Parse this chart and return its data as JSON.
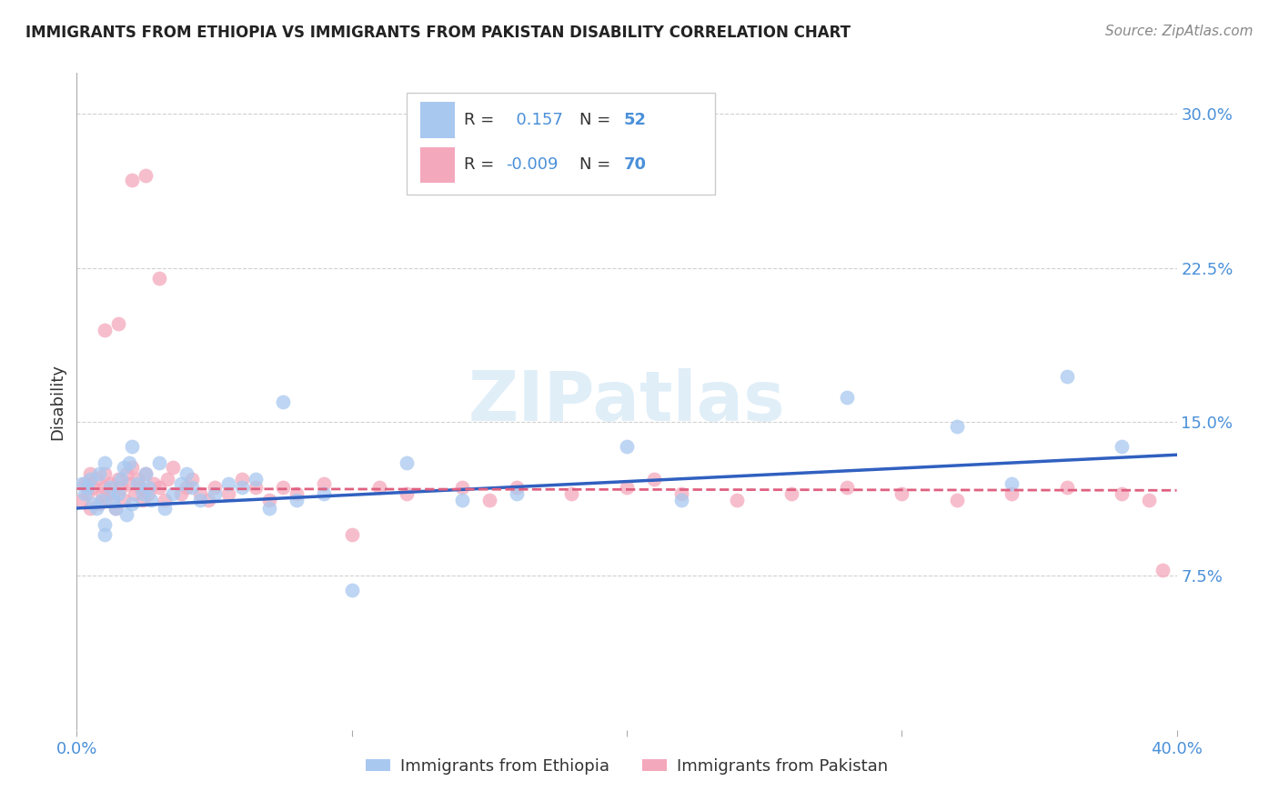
{
  "title": "IMMIGRANTS FROM ETHIOPIA VS IMMIGRANTS FROM PAKISTAN DISABILITY CORRELATION CHART",
  "source": "Source: ZipAtlas.com",
  "ylabel": "Disability",
  "xlabel_ethiopia": "Immigrants from Ethiopia",
  "xlabel_pakistan": "Immigrants from Pakistan",
  "xlim": [
    0.0,
    0.4
  ],
  "ylim": [
    0.0,
    0.32
  ],
  "xticks": [
    0.0,
    0.1,
    0.2,
    0.3,
    0.4
  ],
  "yticks": [
    0.075,
    0.15,
    0.225,
    0.3
  ],
  "ytick_labels": [
    "7.5%",
    "15.0%",
    "22.5%",
    "30.0%"
  ],
  "ethiopia_R": 0.157,
  "ethiopia_N": 52,
  "pakistan_R": -0.009,
  "pakistan_N": 70,
  "ethiopia_color": "#a8c8f0",
  "pakistan_color": "#f4a8bc",
  "ethiopia_line_color": "#3060c0",
  "pakistan_line_color": "#e06080",
  "background_color": "#ffffff",
  "grid_color": "#cccccc",
  "watermark": "ZIPatlas",
  "eth_x": [
    0.002,
    0.003,
    0.004,
    0.005,
    0.006,
    0.007,
    0.008,
    0.009,
    0.01,
    0.01,
    0.01,
    0.012,
    0.013,
    0.014,
    0.015,
    0.016,
    0.017,
    0.018,
    0.019,
    0.02,
    0.02,
    0.022,
    0.024,
    0.025,
    0.026,
    0.027,
    0.03,
    0.032,
    0.035,
    0.038,
    0.04,
    0.042,
    0.045,
    0.05,
    0.055,
    0.06,
    0.065,
    0.07,
    0.075,
    0.08,
    0.09,
    0.1,
    0.12,
    0.14,
    0.16,
    0.2,
    0.22,
    0.28,
    0.32,
    0.34,
    0.36,
    0.38
  ],
  "eth_y": [
    0.12,
    0.115,
    0.118,
    0.122,
    0.11,
    0.108,
    0.125,
    0.112,
    0.13,
    0.1,
    0.095,
    0.118,
    0.112,
    0.108,
    0.115,
    0.122,
    0.128,
    0.105,
    0.13,
    0.11,
    0.138,
    0.12,
    0.115,
    0.125,
    0.118,
    0.112,
    0.13,
    0.108,
    0.115,
    0.12,
    0.125,
    0.118,
    0.112,
    0.115,
    0.12,
    0.118,
    0.122,
    0.108,
    0.16,
    0.112,
    0.115,
    0.068,
    0.13,
    0.112,
    0.115,
    0.138,
    0.112,
    0.162,
    0.148,
    0.12,
    0.172,
    0.138
  ],
  "pak_x": [
    0.002,
    0.003,
    0.004,
    0.005,
    0.005,
    0.006,
    0.007,
    0.008,
    0.009,
    0.01,
    0.01,
    0.01,
    0.012,
    0.013,
    0.014,
    0.015,
    0.016,
    0.017,
    0.018,
    0.019,
    0.02,
    0.021,
    0.022,
    0.023,
    0.024,
    0.025,
    0.026,
    0.028,
    0.03,
    0.032,
    0.033,
    0.035,
    0.038,
    0.04,
    0.042,
    0.045,
    0.048,
    0.05,
    0.055,
    0.06,
    0.065,
    0.07,
    0.075,
    0.08,
    0.09,
    0.1,
    0.11,
    0.12,
    0.14,
    0.15,
    0.16,
    0.18,
    0.2,
    0.21,
    0.22,
    0.24,
    0.26,
    0.28,
    0.3,
    0.32,
    0.34,
    0.36,
    0.38,
    0.39,
    0.395,
    0.02,
    0.025,
    0.03,
    0.015,
    0.01
  ],
  "pak_y": [
    0.112,
    0.12,
    0.115,
    0.125,
    0.108,
    0.118,
    0.122,
    0.11,
    0.115,
    0.118,
    0.112,
    0.125,
    0.12,
    0.115,
    0.108,
    0.122,
    0.118,
    0.112,
    0.125,
    0.12,
    0.128,
    0.115,
    0.122,
    0.118,
    0.112,
    0.125,
    0.115,
    0.12,
    0.118,
    0.112,
    0.122,
    0.128,
    0.115,
    0.118,
    0.122,
    0.115,
    0.112,
    0.118,
    0.115,
    0.122,
    0.118,
    0.112,
    0.118,
    0.115,
    0.12,
    0.095,
    0.118,
    0.115,
    0.118,
    0.112,
    0.118,
    0.115,
    0.118,
    0.122,
    0.115,
    0.112,
    0.115,
    0.118,
    0.115,
    0.112,
    0.115,
    0.118,
    0.115,
    0.112,
    0.078,
    0.268,
    0.27,
    0.22,
    0.198,
    0.195
  ]
}
